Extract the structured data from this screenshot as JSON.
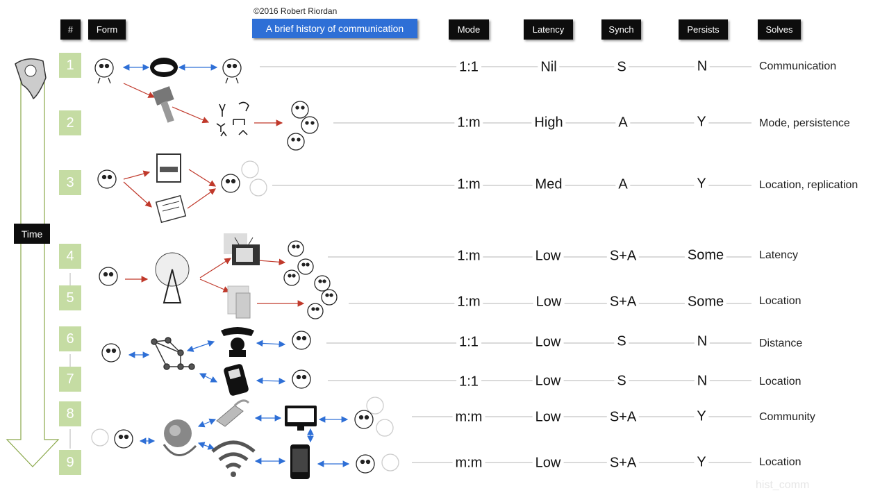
{
  "copyright": "©2016 Robert Riordan",
  "title": "A brief history of communication",
  "headers": {
    "num": "#",
    "form": "Form",
    "mode": "Mode",
    "latency": "Latency",
    "synch": "Synch",
    "persists": "Persists",
    "solves": "Solves"
  },
  "time_label": "Time",
  "watermark": "hist_comm",
  "rows": [
    {
      "num": "1",
      "mode": "1:1",
      "latency": "Nil",
      "synch": "S",
      "persists": "N",
      "solves": "Communication"
    },
    {
      "num": "2",
      "mode": "1:m",
      "latency": "High",
      "synch": "A",
      "persists": "Y",
      "solves": "Mode, persistence"
    },
    {
      "num": "3",
      "mode": "1:m",
      "latency": "Med",
      "synch": "A",
      "persists": "Y",
      "solves": "Location, replication"
    },
    {
      "num": "4",
      "mode": "1:m",
      "latency": "Low",
      "synch": "S+A",
      "persists": "Some",
      "solves": "Latency"
    },
    {
      "num": "5",
      "mode": "1:m",
      "latency": "Low",
      "synch": "S+A",
      "persists": "Some",
      "solves": "Location"
    },
    {
      "num": "6",
      "mode": "1:1",
      "latency": "Low",
      "synch": "S",
      "persists": "N",
      "solves": "Distance"
    },
    {
      "num": "7",
      "mode": "1:1",
      "latency": "Low",
      "synch": "S",
      "persists": "N",
      "solves": "Location"
    },
    {
      "num": "8",
      "mode": "m:m",
      "latency": "Low",
      "synch": "S+A",
      "persists": "Y",
      "solves": "Community"
    },
    {
      "num": "9",
      "mode": "m:m",
      "latency": "Low",
      "synch": "S+A",
      "persists": "Y",
      "solves": "Location"
    }
  ],
  "colors": {
    "header_bg": "#0d0d0d",
    "title_bg": "#2e6fd6",
    "number_bg": "#c5dca3",
    "arrow_red": "#c0392b",
    "arrow_blue": "#2e6fd6",
    "time_arrow": "#8aa84a"
  }
}
